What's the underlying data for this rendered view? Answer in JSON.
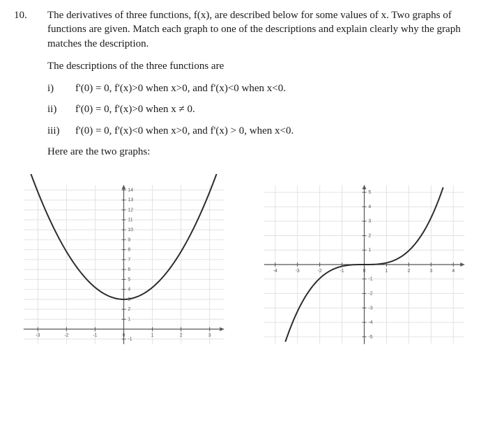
{
  "problem": {
    "number": "10.",
    "prompt": "The derivatives of three functions, f(x), are described below for some values of x. Two graphs of functions are given.  Match each graph to one of the descriptions and explain clearly why the graph matches the description.",
    "lead_in": "The descriptions of the three functions are",
    "items": [
      {
        "label": "i)",
        "text": "f'(0) = 0, f'(x)>0 when x>0, and f'(x)<0 when x<0."
      },
      {
        "label": "ii)",
        "text": "f'(0) = 0, f'(x)>0 when x ≠ 0."
      },
      {
        "label": "iii)",
        "text": "f'(0) = 0, f'(x)<0 when x>0, and f'(x) > 0, when x<0."
      }
    ],
    "graphs_intro": "Here are the two graphs:"
  },
  "left_chart": {
    "type": "line",
    "description": "parabola opening upward, vertex near y=3",
    "x_range": [
      -3.5,
      3.5
    ],
    "y_range": [
      -1.5,
      14.5
    ],
    "x_ticks": [
      -3,
      -2,
      -1,
      0,
      1,
      2,
      3
    ],
    "y_ticks": [
      -1,
      1,
      2,
      3,
      4,
      5,
      6,
      7,
      8,
      9,
      10,
      11,
      12,
      13,
      14
    ],
    "x_tick_labels": [
      "-3",
      "-2",
      "-1",
      "0",
      "1",
      "2",
      "3"
    ],
    "y_tick_labels": [
      "-1",
      "1",
      "2",
      "3",
      "4",
      "5",
      "6",
      "7",
      "8",
      "9",
      "10",
      "11",
      "12",
      "13",
      "14"
    ],
    "grid_color": "#e2e2e2",
    "axis_color": "#555555",
    "curve_color": "#2a2a2a",
    "background": "#ffffff",
    "vertex_y": 3,
    "coef": 1.2
  },
  "right_chart": {
    "type": "line",
    "description": "cubic-like curve, increasing, inflection at origin",
    "x_range": [
      -4.5,
      4.5
    ],
    "y_range": [
      -5.5,
      5.5
    ],
    "x_ticks": [
      -4,
      -3,
      -2,
      -1,
      0,
      1,
      2,
      3,
      4
    ],
    "y_ticks": [
      -5,
      -4,
      -3,
      -2,
      -1,
      1,
      2,
      3,
      4,
      5
    ],
    "x_tick_labels": [
      "-4",
      "-3",
      "-2",
      "-1",
      "0",
      "1",
      "2",
      "3",
      "4"
    ],
    "y_tick_labels": [
      "-5",
      "-4",
      "-3",
      "-2",
      "-1",
      "1",
      "2",
      "3",
      "4",
      "5"
    ],
    "grid_color": "#e2e2e2",
    "axis_color": "#555555",
    "curve_color": "#2a2a2a",
    "background": "#ffffff",
    "coef": 0.12
  }
}
